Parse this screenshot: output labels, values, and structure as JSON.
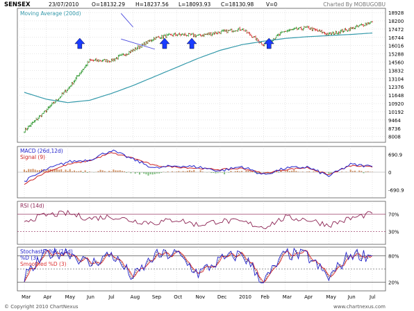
{
  "header": {
    "symbol": "SENSEX",
    "date": "23/07/2010",
    "open": "O=18132.29",
    "high": "H=18237.56",
    "low": "L=18093.93",
    "close": "C=18130.98",
    "volume": "V=0",
    "charted_by": "Charted By MOBUGOBU"
  },
  "footer": {
    "copyright": "© Copyright 2010 ChartNexus",
    "website": "www.chartnexus.com"
  },
  "x_axis": {
    "months": [
      "Mar",
      "Apr",
      "May",
      "Jun",
      "Jul",
      "Aug",
      "Sep",
      "Oct",
      "Nov",
      "Dec",
      "2010",
      "Feb",
      "Mar",
      "Apr",
      "May",
      "Jun",
      "Jul"
    ]
  },
  "colors": {
    "up_candle": "#008000",
    "down_candle": "#cc0000",
    "moving_average": "#3399aa",
    "channel": "#4444dd",
    "arrow": "#1a3cff",
    "macd": "#2222cc",
    "signal": "#cc2222",
    "rsi": "#8b2252",
    "stoch_k": "#2222cc",
    "stoch_d": "#222222",
    "stoch_smoothed": "#dd3333",
    "frame": "#555555",
    "grid": "#cccccc"
  },
  "chart_data": [
    {
      "panel": "price",
      "type": "candlestick",
      "title": "SENSEX",
      "legend": [
        "Moving Average (200d)"
      ],
      "y_ticks": [
        18928,
        18200,
        17472,
        16744,
        16016,
        15288,
        14560,
        13832,
        13104,
        12376,
        11648,
        10920,
        10192,
        9464,
        8736,
        8008
      ],
      "ylim": [
        7500,
        19300
      ],
      "close_trend": {
        "x": [
          "Mar",
          "Apr",
          "May",
          "Jun",
          "Jul",
          "Aug",
          "Sep",
          "Oct",
          "Nov",
          "Dec",
          "2010",
          "Feb",
          "Mar",
          "Apr",
          "May",
          "Jun",
          "Jul"
        ],
        "values": [
          8500,
          10300,
          12200,
          14700,
          14700,
          15600,
          16700,
          17000,
          16900,
          17200,
          17500,
          16100,
          17300,
          17600,
          17000,
          17500,
          18130
        ]
      },
      "moving_average_200d": {
        "x": [
          "Mar",
          "Apr",
          "May",
          "Jun",
          "Jul",
          "Aug",
          "Sep",
          "Oct",
          "Nov",
          "Dec",
          "2010",
          "Feb",
          "Mar",
          "Apr",
          "May",
          "Jun",
          "Jul"
        ],
        "values": [
          11900,
          11300,
          11000,
          11200,
          11800,
          12500,
          13300,
          14100,
          14900,
          15600,
          16100,
          16400,
          16650,
          16800,
          16900,
          17000,
          17130
        ]
      },
      "channel": {
        "upper": {
          "from": [
            "Aug",
            17650
          ],
          "to": [
            "Jul",
            18850
          ]
        },
        "lower": {
          "from": [
            "Sep",
            15700
          ],
          "to": [
            "Jul",
            16600
          ]
        }
      },
      "arrows_at": [
        "Sep",
        "Oct",
        "Feb",
        "May"
      ]
    },
    {
      "panel": "macd",
      "type": "line",
      "title": "MACD (26d,12d)",
      "legend": [
        "MACD (26d,12d)",
        "Signal (9)"
      ],
      "y_ticks": [
        "690.9",
        "0",
        "-690.9"
      ],
      "ylim": [
        -1000,
        1000
      ],
      "series": [
        {
          "name": "MACD (26d,12d)",
          "values": [
            -350,
            100,
            400,
            480,
            850,
            500,
            150,
            250,
            200,
            50,
            220,
            -100,
            150,
            200,
            -150,
            300,
            220
          ]
        },
        {
          "name": "Signal (9)",
          "values": [
            -450,
            0,
            300,
            450,
            750,
            550,
            250,
            200,
            150,
            100,
            150,
            -50,
            100,
            180,
            -100,
            250,
            200
          ]
        }
      ]
    },
    {
      "panel": "rsi",
      "type": "line",
      "title": "RSI (14d)",
      "legend": [
        "RSI (14d)"
      ],
      "y_ticks": [
        "70%",
        "30%"
      ],
      "ylim": [
        0,
        100
      ],
      "series": [
        {
          "name": "RSI (14d)",
          "values": [
            55,
            68,
            72,
            60,
            65,
            55,
            50,
            58,
            45,
            55,
            52,
            40,
            62,
            58,
            45,
            60,
            72
          ]
        }
      ]
    },
    {
      "panel": "stochastic",
      "type": "line",
      "title": "Stochastic %K (14d)",
      "legend": [
        "Stochastic %K (14d)",
        "%D (3)",
        "Smoothed %D (3)"
      ],
      "y_ticks": [
        "80%",
        "20%"
      ],
      "ylim": [
        0,
        100
      ],
      "series": [
        {
          "name": "Stochastic %K (14d)",
          "values": [
            30,
            85,
            90,
            60,
            85,
            30,
            80,
            85,
            40,
            70,
            85,
            20,
            85,
            80,
            30,
            85,
            80
          ]
        },
        {
          "name": "%D (3)",
          "values": [
            35,
            80,
            88,
            62,
            82,
            35,
            75,
            83,
            45,
            68,
            82,
            25,
            80,
            78,
            35,
            80,
            82
          ]
        },
        {
          "name": "Smoothed %D (3)",
          "values": [
            40,
            75,
            85,
            65,
            78,
            40,
            70,
            80,
            50,
            65,
            78,
            30,
            75,
            76,
            40,
            75,
            83
          ]
        }
      ]
    }
  ]
}
